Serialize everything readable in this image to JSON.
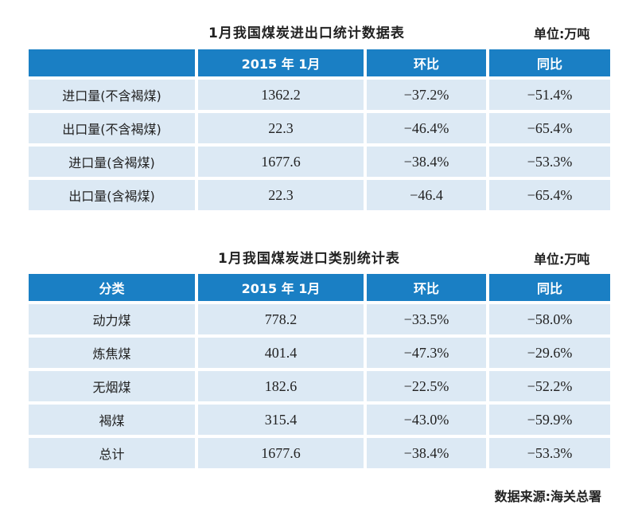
{
  "table1": {
    "title": "1月我国煤炭进出口统计数据表",
    "unit": "单位:万吨",
    "headers": [
      "",
      "2015 年 1月",
      "环比",
      "同比"
    ],
    "rows": [
      [
        "进口量(不含褐煤)",
        "1362.2",
        "−37.2%",
        "−51.4%"
      ],
      [
        "出口量(不含褐煤)",
        "22.3",
        "−46.4%",
        "−65.4%"
      ],
      [
        "进口量(含褐煤)",
        "1677.6",
        "−38.4%",
        "−53.3%"
      ],
      [
        "出口量(含褐煤)",
        "22.3",
        "−46.4",
        "−65.4%"
      ]
    ]
  },
  "table2": {
    "title": "1月我国煤炭进口类别统计表",
    "unit": "单位:万吨",
    "headers": [
      "分类",
      "2015 年 1月",
      "环比",
      "同比"
    ],
    "rows": [
      [
        "动力煤",
        "778.2",
        "−33.5%",
        "−58.0%"
      ],
      [
        "炼焦煤",
        "401.4",
        "−47.3%",
        "−29.6%"
      ],
      [
        "无烟煤",
        "182.6",
        "−22.5%",
        "−52.2%"
      ],
      [
        "褐煤",
        "315.4",
        "−43.0%",
        "−59.9%"
      ],
      [
        "总计",
        "1677.6",
        "−38.4%",
        "−53.3%"
      ]
    ]
  },
  "source": "数据来源:海关总署",
  "colors": {
    "header_bg": "#1a7fc4",
    "body_bg": "#dce9f4"
  }
}
